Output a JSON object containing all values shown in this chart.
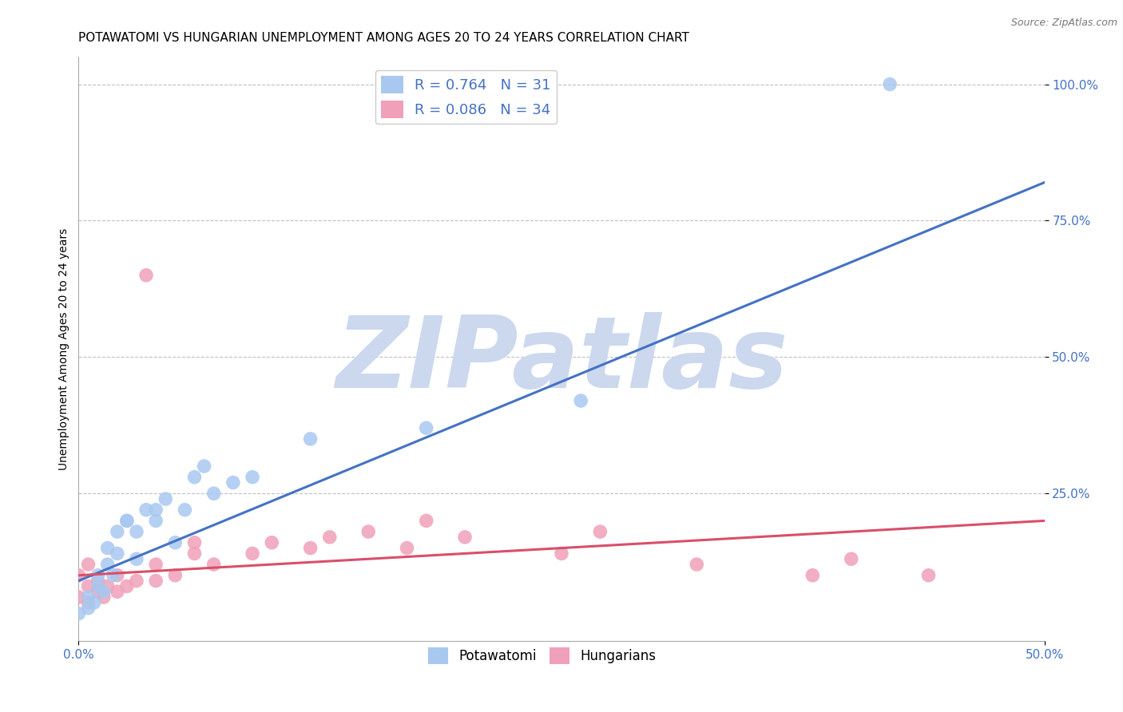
{
  "title": "POTAWATOMI VS HUNGARIAN UNEMPLOYMENT AMONG AGES 20 TO 24 YEARS CORRELATION CHART",
  "source": "Source: ZipAtlas.com",
  "ylabel": "Unemployment Among Ages 20 to 24 years",
  "xlim": [
    0.0,
    0.5
  ],
  "ylim": [
    -0.02,
    1.05
  ],
  "xticks": [
    0.0,
    0.5
  ],
  "xticklabels": [
    "0.0%",
    "50.0%"
  ],
  "yticks": [
    0.25,
    0.5,
    0.75,
    1.0
  ],
  "yticklabels": [
    "25.0%",
    "50.0%",
    "75.0%",
    "100.0%"
  ],
  "potawatomi_x": [
    0.0,
    0.005,
    0.005,
    0.008,
    0.01,
    0.01,
    0.013,
    0.015,
    0.015,
    0.018,
    0.02,
    0.02,
    0.025,
    0.025,
    0.03,
    0.03,
    0.035,
    0.04,
    0.04,
    0.045,
    0.05,
    0.055,
    0.06,
    0.065,
    0.07,
    0.08,
    0.09,
    0.12,
    0.18,
    0.26,
    0.42
  ],
  "potawatomi_y": [
    0.03,
    0.04,
    0.06,
    0.05,
    0.08,
    0.1,
    0.07,
    0.12,
    0.15,
    0.1,
    0.14,
    0.18,
    0.2,
    0.2,
    0.13,
    0.18,
    0.22,
    0.2,
    0.22,
    0.24,
    0.16,
    0.22,
    0.28,
    0.3,
    0.25,
    0.27,
    0.28,
    0.35,
    0.37,
    0.42,
    1.0
  ],
  "hungarian_x": [
    0.0,
    0.0,
    0.005,
    0.005,
    0.005,
    0.01,
    0.01,
    0.013,
    0.015,
    0.02,
    0.02,
    0.025,
    0.03,
    0.035,
    0.04,
    0.04,
    0.05,
    0.06,
    0.06,
    0.07,
    0.09,
    0.1,
    0.12,
    0.13,
    0.15,
    0.17,
    0.18,
    0.2,
    0.25,
    0.27,
    0.32,
    0.38,
    0.4,
    0.44
  ],
  "hungarian_y": [
    0.06,
    0.1,
    0.05,
    0.08,
    0.12,
    0.07,
    0.09,
    0.06,
    0.08,
    0.07,
    0.1,
    0.08,
    0.09,
    0.65,
    0.09,
    0.12,
    0.1,
    0.14,
    0.16,
    0.12,
    0.14,
    0.16,
    0.15,
    0.17,
    0.18,
    0.15,
    0.2,
    0.17,
    0.14,
    0.18,
    0.12,
    0.1,
    0.13,
    0.1
  ],
  "potawatomi_color": "#a8c8f0",
  "hungarian_color": "#f0a0b8",
  "trendline_potawatomi_color": "#4472c4",
  "trendline_hungarian_color": "#d94f6a",
  "trendline_pot_x0": 0.0,
  "trendline_pot_y0": 0.09,
  "trendline_pot_x1": 0.5,
  "trendline_pot_y1": 0.82,
  "trendline_hun_x0": 0.0,
  "trendline_hun_y0": 0.1,
  "trendline_hun_x1": 0.5,
  "trendline_hun_y1": 0.2,
  "R_potawatomi": 0.764,
  "N_potawatomi": 31,
  "R_hungarian": 0.086,
  "N_hungarian": 34,
  "watermark": "ZIPatlas",
  "watermark_color": "#ccd8ee",
  "grid_color": "#c0c0c0",
  "background_color": "#ffffff",
  "title_fontsize": 11,
  "axis_label_fontsize": 10,
  "tick_fontsize": 11,
  "legend_fontsize": 13,
  "source_fontsize": 9
}
